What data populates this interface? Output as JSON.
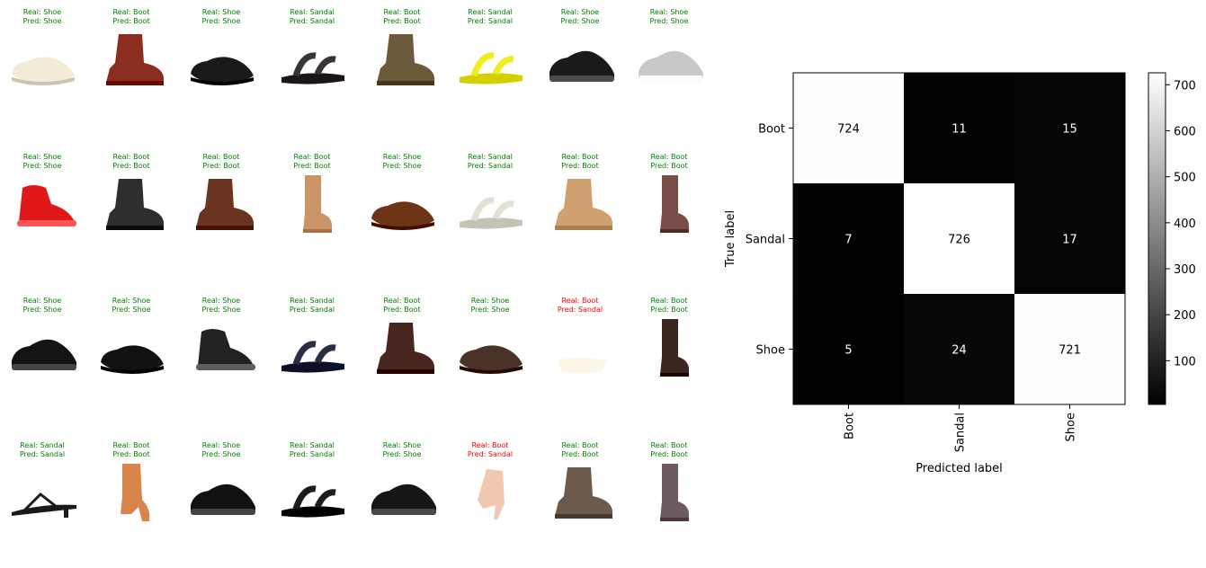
{
  "colors": {
    "correct": "#008000",
    "wrong": "#ff0000"
  },
  "samples": [
    {
      "real": "Real: Shoe",
      "pred": "Pred: Shoe",
      "correct": true,
      "icon": "loafer-shoe-icon",
      "color": "#f2ecd8"
    },
    {
      "real": "Real: Boot",
      "pred": "Pred: Boot",
      "correct": true,
      "icon": "ankle-boot-icon",
      "color": "#8b2e20"
    },
    {
      "real": "Real: Shoe",
      "pred": "Pred: Shoe",
      "correct": true,
      "icon": "loafer-shoe-icon",
      "color": "#1a1a1a"
    },
    {
      "real": "Real: Sandal",
      "pred": "Pred: Sandal",
      "correct": true,
      "icon": "sandal-icon",
      "color": "#3b3436"
    },
    {
      "real": "Real: Boot",
      "pred": "Pred: Boot",
      "correct": true,
      "icon": "ankle-boot-icon",
      "color": "#6b5a3c"
    },
    {
      "real": "Real: Sandal",
      "pred": "Pred: Sandal",
      "correct": true,
      "icon": "sandal-icon",
      "color": "#f2ee1e"
    },
    {
      "real": "Real: Shoe",
      "pred": "Pred: Shoe",
      "correct": true,
      "icon": "sneaker-icon",
      "color": "#1a1a1a"
    },
    {
      "real": "Real: Shoe",
      "pred": "Pred: Shoe",
      "correct": true,
      "icon": "sneaker-icon",
      "color": "#c8c8c8"
    },
    {
      "real": "Real: Shoe",
      "pred": "Pred: Shoe",
      "correct": true,
      "icon": "high-top-sneaker-icon",
      "color": "#e01818"
    },
    {
      "real": "Real: Boot",
      "pred": "Pred: Boot",
      "correct": true,
      "icon": "ankle-boot-icon",
      "color": "#2e2e2e"
    },
    {
      "real": "Real: Boot",
      "pred": "Pred: Boot",
      "correct": true,
      "icon": "ankle-boot-icon",
      "color": "#6a3420"
    },
    {
      "real": "Real: Boot",
      "pred": "Pred: Boot",
      "correct": true,
      "icon": "tall-boot-icon",
      "color": "#c89468"
    },
    {
      "real": "Real: Shoe",
      "pred": "Pred: Shoe",
      "correct": true,
      "icon": "loafer-shoe-icon",
      "color": "#6e3416"
    },
    {
      "real": "Real: Sandal",
      "pred": "Pred: Sandal",
      "correct": true,
      "icon": "sandal-icon",
      "color": "#e4e0d4"
    },
    {
      "real": "Real: Boot",
      "pred": "Pred: Boot",
      "correct": true,
      "icon": "ankle-boot-icon",
      "color": "#cfa070"
    },
    {
      "real": "Real: Boot",
      "pred": "Pred: Boot",
      "correct": true,
      "icon": "tall-boot-icon",
      "color": "#7a4c48"
    },
    {
      "real": "Real: Shoe",
      "pred": "Pred: Shoe",
      "correct": true,
      "icon": "sneaker-icon",
      "color": "#141414"
    },
    {
      "real": "Real: Shoe",
      "pred": "Pred: Shoe",
      "correct": true,
      "icon": "loafer-shoe-icon",
      "color": "#111111"
    },
    {
      "real": "Real: Shoe",
      "pred": "Pred: Shoe",
      "correct": true,
      "icon": "high-top-sneaker-icon",
      "color": "#222222"
    },
    {
      "real": "Real: Sandal",
      "pred": "Pred: Sandal",
      "correct": true,
      "icon": "sandal-icon",
      "color": "#2a2e44"
    },
    {
      "real": "Real: Boot",
      "pred": "Pred: Boot",
      "correct": true,
      "icon": "ankle-boot-icon",
      "color": "#4a2620"
    },
    {
      "real": "Real: Shoe",
      "pred": "Pred: Shoe",
      "correct": true,
      "icon": "loafer-shoe-icon",
      "color": "#4a3228"
    },
    {
      "real": "Real: Boot",
      "pred": "Pred: Sandal",
      "correct": false,
      "icon": "faint-shoe-icon",
      "color": "#fbf6e6"
    },
    {
      "real": "Real: Boot",
      "pred": "Pred: Boot",
      "correct": true,
      "icon": "tall-boot-icon",
      "color": "#3e2620"
    },
    {
      "real": "Real: Sandal",
      "pred": "Pred: Sandal",
      "correct": true,
      "icon": "thong-sandal-icon",
      "color": "#1a1a1a"
    },
    {
      "real": "Real: Boot",
      "pred": "Pred: Boot",
      "correct": true,
      "icon": "heeled-boot-icon",
      "color": "#d8844a"
    },
    {
      "real": "Real: Shoe",
      "pred": "Pred: Shoe",
      "correct": true,
      "icon": "sneaker-icon",
      "color": "#111111"
    },
    {
      "real": "Real: Sandal",
      "pred": "Pred: Sandal",
      "correct": true,
      "icon": "sandal-icon",
      "color": "#1c1c1c"
    },
    {
      "real": "Real: Shoe",
      "pred": "Pred: Shoe",
      "correct": true,
      "icon": "sneaker-icon",
      "color": "#161616"
    },
    {
      "real": "Real: Boot",
      "pred": "Pred: Sandal",
      "correct": false,
      "icon": "high-heel-icon",
      "color": "#f0c8b0"
    },
    {
      "real": "Real: Boot",
      "pred": "Pred: Boot",
      "correct": true,
      "icon": "ankle-boot-icon",
      "color": "#6c5a4c"
    },
    {
      "real": "Real: Boot",
      "pred": "Pred: Boot",
      "correct": true,
      "icon": "tall-boot-icon",
      "color": "#6c5c60"
    }
  ],
  "chart_data": {
    "type": "heatmap",
    "xlabel": "Predicted label",
    "ylabel": "True label",
    "x_categories": [
      "Boot",
      "Sandal",
      "Shoe"
    ],
    "y_categories": [
      "Boot",
      "Sandal",
      "Shoe"
    ],
    "values": [
      [
        724,
        11,
        15
      ],
      [
        7,
        726,
        17
      ],
      [
        5,
        24,
        721
      ]
    ],
    "colormap": "gray",
    "vmin": 5,
    "vmax": 726,
    "colorbar_ticks": [
      100,
      200,
      300,
      400,
      500,
      600,
      700
    ]
  }
}
